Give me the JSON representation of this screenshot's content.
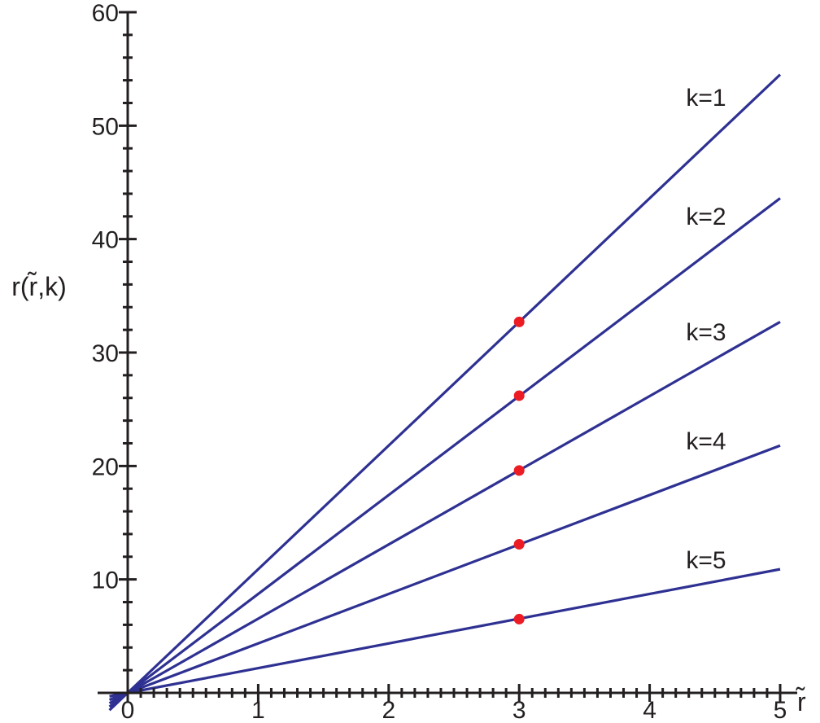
{
  "chart_data": {
    "type": "line",
    "title": "",
    "xlabel": "r̃",
    "ylabel": "r(r̃,k)",
    "xlim": [
      0,
      5
    ],
    "ylim": [
      0,
      60
    ],
    "x_ticks": [
      "0",
      "1",
      "2",
      "3",
      "4",
      "5"
    ],
    "y_ticks": [
      "10",
      "20",
      "30",
      "40",
      "50",
      "60"
    ],
    "grid": false,
    "legend": "none",
    "series": [
      {
        "name": "k=1",
        "x": [
          0,
          5
        ],
        "values": [
          0,
          54.5
        ]
      },
      {
        "name": "k=2",
        "x": [
          0,
          5
        ],
        "values": [
          0,
          43.6
        ]
      },
      {
        "name": "k=3",
        "x": [
          0,
          5
        ],
        "values": [
          0,
          32.7
        ]
      },
      {
        "name": "k=4",
        "x": [
          0,
          5
        ],
        "values": [
          0,
          21.8
        ]
      },
      {
        "name": "k=5",
        "x": [
          0,
          5
        ],
        "values": [
          0,
          10.9
        ]
      }
    ],
    "highlight_points": [
      {
        "x": 3,
        "y": 32.7
      },
      {
        "x": 3,
        "y": 26.2
      },
      {
        "x": 3,
        "y": 19.6
      },
      {
        "x": 3,
        "y": 13.1
      },
      {
        "x": 3,
        "y": 6.5
      }
    ],
    "colors": {
      "line": "#2e3192",
      "point": "#ed1c24",
      "axis": "#231f20"
    }
  }
}
